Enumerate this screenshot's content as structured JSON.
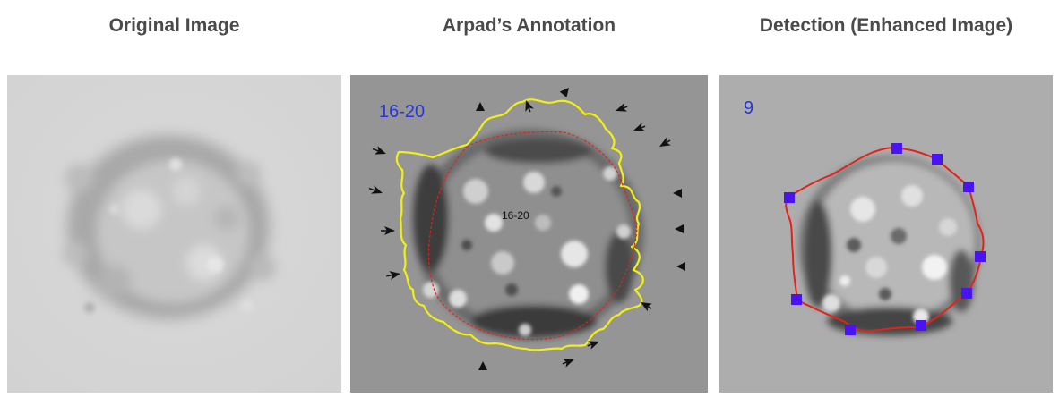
{
  "panels": [
    {
      "title": "Original Image"
    },
    {
      "title": "Arpad’s Annotation",
      "count_label": "16-20",
      "center_label": "16-20"
    },
    {
      "title": "Detection (Enhanced Image)",
      "count_label": "9"
    }
  ],
  "colors": {
    "title_text": "#4a4a4a",
    "count_label": "#2a35d6",
    "annotation_contour": "#f0f016",
    "annotation_inner_contour": "#e2231a",
    "detection_contour": "#e2231a",
    "detection_marker": "#4a14f0"
  },
  "icons": {
    "arrowhead": "black-arrowhead-icon",
    "marker": "blue-square-marker-icon"
  }
}
